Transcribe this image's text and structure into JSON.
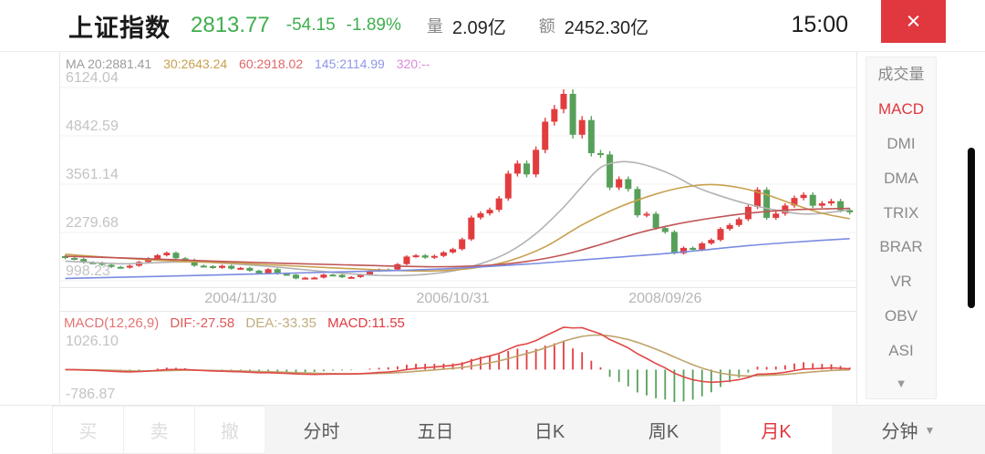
{
  "header": {
    "title": "上证指数",
    "price": "2813.77",
    "change": "-54.15",
    "change_pct": "-1.89%",
    "volume_label": "量",
    "volume_value": "2.09亿",
    "amount_label": "额",
    "amount_value": "2452.30亿",
    "time": "15:00",
    "close_icon": "×",
    "price_color": "#3fae4e",
    "close_bg": "#e0383e"
  },
  "chart_data": {
    "type": "candlestick",
    "symbol": "上证指数",
    "period": "月K",
    "ma_legend": [
      {
        "label": "MA 20:2881.41",
        "color": "#9b9b9b"
      },
      {
        "label": "30:2643.24",
        "color": "#c8a04e"
      },
      {
        "label": "60:2918.02",
        "color": "#e06666"
      },
      {
        "label": "145:2114.99",
        "color": "#8f97e8"
      },
      {
        "label": "320:--",
        "color": "#da8ada"
      }
    ],
    "y_axis_labels": [
      "6124.04",
      "4842.59",
      "3561.14",
      "2279.68",
      "998.23"
    ],
    "y_axis_values": [
      6124.04,
      4842.59,
      3561.14,
      2279.68,
      998.23
    ],
    "x_axis_labels": [
      {
        "label": "2004/11/30",
        "index": 19
      },
      {
        "label": "2006/10/31",
        "index": 42
      },
      {
        "label": "2008/09/26",
        "index": 65
      }
    ],
    "up_color": "#e23c3f",
    "down_color": "#57a05a",
    "open_first": 1650,
    "closes": [
      1603,
      1576,
      1486,
      1476,
      1421,
      1367,
      1348,
      1397,
      1497,
      1590,
      1675,
      1741,
      1595,
      1555,
      1399,
      1386,
      1342,
      1396,
      1320,
      1340,
      1266,
      1191,
      1306,
      1181,
      1159,
      1060,
      1080,
      1083,
      1162,
      1155,
      1092,
      1099,
      1161,
      1258,
      1299,
      1298,
      1440,
      1641,
      1672,
      1612,
      1658,
      1752,
      1837,
      2099,
      2675,
      2786,
      2881,
      3183,
      3841,
      4109,
      3820,
      4471,
      5218,
      5552,
      5955,
      4871,
      5261,
      4383,
      4348,
      3472,
      3693,
      3433,
      2736,
      2775,
      2397,
      2294,
      1729,
      1871,
      1821,
      1991,
      2082,
      2373,
      2477,
      2632,
      2959,
      3412,
      2668,
      2779,
      2995,
      3195,
      3277,
      2989,
      3052,
      3109,
      2871,
      2814
    ],
    "ma_lines": [
      {
        "name": "MA20",
        "color": "#b3b3b3",
        "points": [
          [
            0,
            1520
          ],
          [
            6,
            1450
          ],
          [
            10,
            1480
          ],
          [
            14,
            1500
          ],
          [
            18,
            1450
          ],
          [
            22,
            1380
          ],
          [
            26,
            1290
          ],
          [
            30,
            1200
          ],
          [
            34,
            1140
          ],
          [
            38,
            1150
          ],
          [
            42,
            1260
          ],
          [
            45,
            1450
          ],
          [
            48,
            1750
          ],
          [
            51,
            2250
          ],
          [
            54,
            2950
          ],
          [
            56,
            3500
          ],
          [
            58,
            4000
          ],
          [
            60,
            4150
          ],
          [
            62,
            4120
          ],
          [
            64,
            3980
          ],
          [
            66,
            3780
          ],
          [
            68,
            3520
          ],
          [
            70,
            3330
          ],
          [
            72,
            3170
          ],
          [
            74,
            3030
          ],
          [
            76,
            2920
          ],
          [
            78,
            2830
          ],
          [
            80,
            2770
          ],
          [
            82,
            2790
          ],
          [
            85,
            2881
          ]
        ]
      },
      {
        "name": "MA30",
        "color": "#c8a04e",
        "points": [
          [
            0,
            1700
          ],
          [
            6,
            1600
          ],
          [
            12,
            1520
          ],
          [
            18,
            1470
          ],
          [
            24,
            1400
          ],
          [
            30,
            1330
          ],
          [
            36,
            1270
          ],
          [
            40,
            1260
          ],
          [
            44,
            1330
          ],
          [
            48,
            1520
          ],
          [
            52,
            1900
          ],
          [
            56,
            2480
          ],
          [
            60,
            2950
          ],
          [
            64,
            3300
          ],
          [
            67,
            3480
          ],
          [
            70,
            3550
          ],
          [
            73,
            3470
          ],
          [
            76,
            3280
          ],
          [
            79,
            3020
          ],
          [
            82,
            2790
          ],
          [
            85,
            2643
          ]
        ]
      },
      {
        "name": "MA60",
        "color": "#c05555",
        "points": [
          [
            0,
            1650
          ],
          [
            8,
            1590
          ],
          [
            16,
            1520
          ],
          [
            24,
            1460
          ],
          [
            32,
            1410
          ],
          [
            40,
            1370
          ],
          [
            46,
            1410
          ],
          [
            50,
            1510
          ],
          [
            54,
            1690
          ],
          [
            58,
            1960
          ],
          [
            62,
            2260
          ],
          [
            66,
            2490
          ],
          [
            70,
            2660
          ],
          [
            74,
            2790
          ],
          [
            78,
            2870
          ],
          [
            82,
            2905
          ],
          [
            85,
            2918
          ]
        ]
      },
      {
        "name": "MA145",
        "color": "#7b8ce0",
        "points": [
          [
            0,
            1060
          ],
          [
            10,
            1115
          ],
          [
            20,
            1175
          ],
          [
            30,
            1235
          ],
          [
            40,
            1305
          ],
          [
            50,
            1440
          ],
          [
            58,
            1590
          ],
          [
            66,
            1740
          ],
          [
            74,
            1930
          ],
          [
            80,
            2040
          ],
          [
            85,
            2115
          ]
        ]
      }
    ],
    "macd": {
      "legend": [
        {
          "label": "MACD(12,26,9)",
          "color": "#e57373"
        },
        {
          "label": "DIF:-27.58",
          "color": "#e05a5a"
        },
        {
          "label": "DEA:-33.35",
          "color": "#c0ae7e"
        },
        {
          "label": "MACD:11.55",
          "color": "#e0393f"
        }
      ],
      "params": {
        "fast": 12,
        "slow": 26,
        "signal": 9
      },
      "y_top_label": "1026.10",
      "y_bottom_label": "-786.87",
      "dif_color": "#e04848",
      "dea_color": "#bfa36a"
    }
  },
  "sidebar": {
    "items": [
      {
        "label": "成交量",
        "active": false
      },
      {
        "label": "MACD",
        "active": true
      },
      {
        "label": "DMI",
        "active": false
      },
      {
        "label": "DMA",
        "active": false
      },
      {
        "label": "TRIX",
        "active": false
      },
      {
        "label": "BRAR",
        "active": false
      },
      {
        "label": "VR",
        "active": false
      },
      {
        "label": "OBV",
        "active": false
      },
      {
        "label": "ASI",
        "active": false
      }
    ],
    "more_icon": "▼"
  },
  "toolbar": {
    "trade": [
      "买",
      "卖",
      "撤"
    ],
    "tabs": [
      "分时",
      "五日",
      "日K",
      "周K",
      "月K"
    ],
    "active_tab": "月K",
    "minute_label": "分钟",
    "dropdown_icon": "▼"
  }
}
